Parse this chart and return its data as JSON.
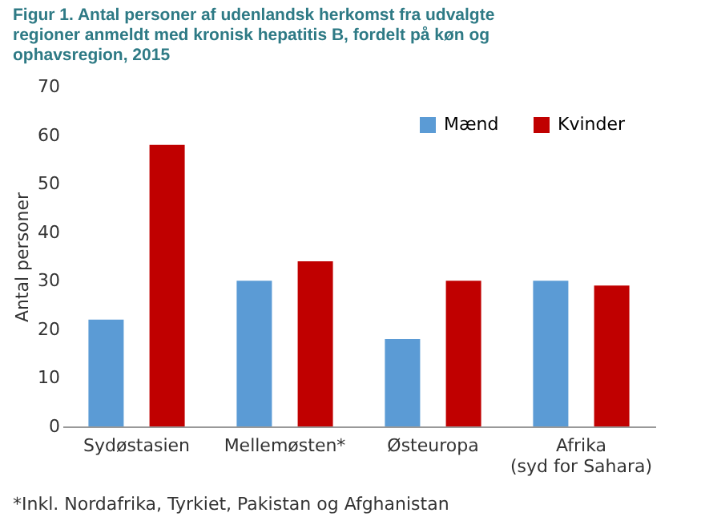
{
  "chart_data": {
    "type": "bar",
    "title": "Figur 1. Antal personer af udenlandsk herkomst fra udvalgte regioner anmeldt med kronisk hepatitis B, fordelt på køn og ophavsregion, 2015",
    "ylabel": "Antal personer",
    "categories": [
      "Sydøstasien",
      "Mellemøsten*",
      "Østeuropa",
      "Afrika (syd for Sahara)"
    ],
    "series": [
      {
        "name": "Mænd",
        "color": "#5b9bd5",
        "values": [
          22,
          30,
          18,
          30
        ]
      },
      {
        "name": "Kvinder",
        "color": "#c00000",
        "values": [
          58,
          34,
          30,
          29
        ]
      }
    ],
    "ylim": [
      0,
      70
    ],
    "yticks": [
      0,
      10,
      20,
      30,
      40,
      50,
      60,
      70
    ],
    "grid": false,
    "legend": "top right",
    "annotations": [
      "*Inkl. Nordafrika, Tyrkiet, Pakistan og Afghanistan"
    ]
  }
}
